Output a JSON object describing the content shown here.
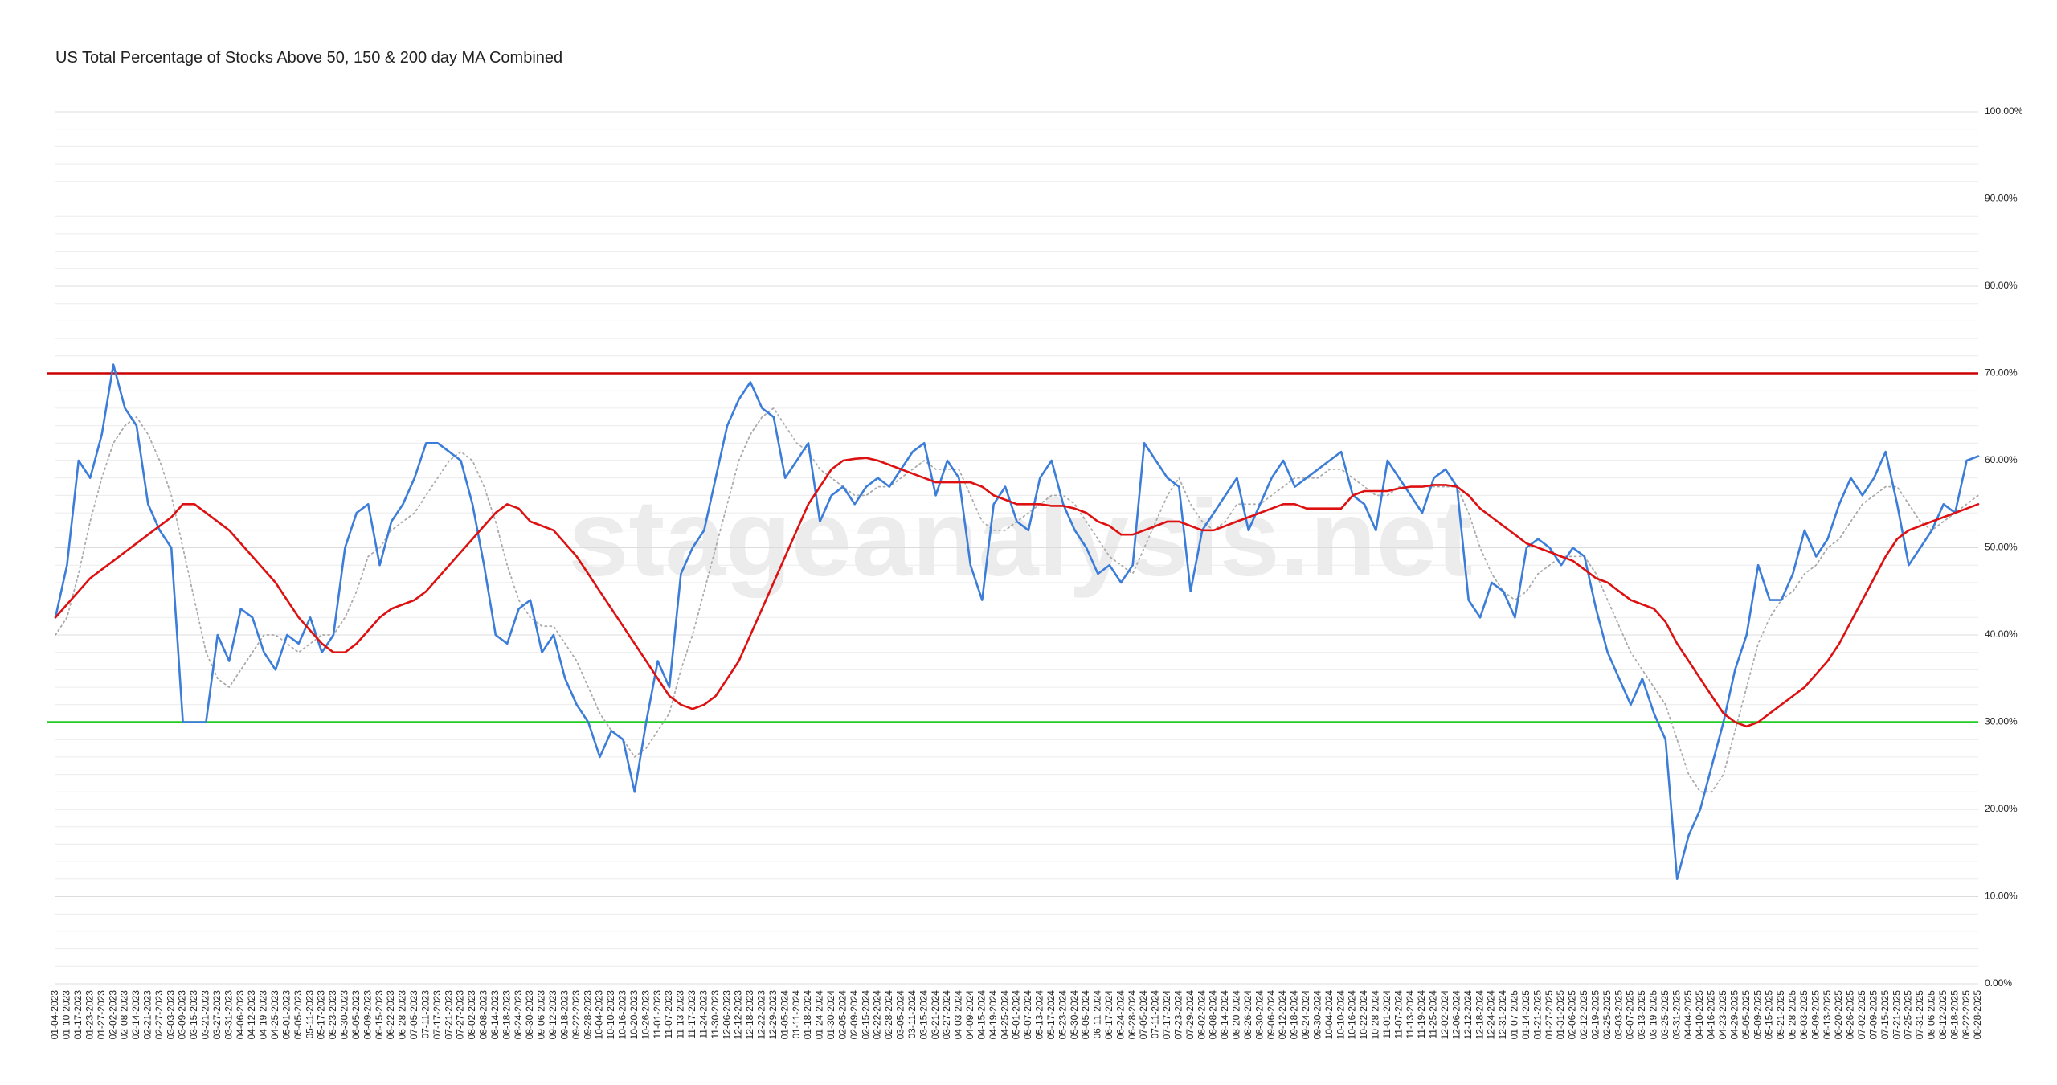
{
  "chart_data": {
    "type": "line",
    "title": "US Total Percentage of Stocks Above 50, 150 & 200 day MA Combined",
    "watermark": "stageanalysis.net",
    "categories": [
      "01-04-2023",
      "01-10-2023",
      "01-17-2023",
      "01-23-2023",
      "01-27-2023",
      "02-02-2023",
      "02-08-2023",
      "02-14-2023",
      "02-21-2023",
      "02-27-2023",
      "03-03-2023",
      "03-09-2023",
      "03-15-2023",
      "03-21-2023",
      "03-27-2023",
      "03-31-2023",
      "04-06-2023",
      "04-12-2023",
      "04-19-2023",
      "04-25-2023",
      "05-01-2023",
      "05-05-2023",
      "05-11-2023",
      "05-17-2023",
      "05-23-2023",
      "05-30-2023",
      "06-05-2023",
      "06-09-2023",
      "06-15-2023",
      "06-22-2023",
      "06-28-2023",
      "07-05-2023",
      "07-11-2023",
      "07-17-2023",
      "07-21-2023",
      "07-27-2023",
      "08-02-2023",
      "08-08-2023",
      "08-14-2023",
      "08-18-2023",
      "08-24-2023",
      "08-30-2023",
      "09-06-2023",
      "09-12-2023",
      "09-18-2023",
      "09-22-2023",
      "09-28-2023",
      "10-04-2023",
      "10-10-2023",
      "10-16-2023",
      "10-20-2023",
      "10-26-2023",
      "11-01-2023",
      "11-07-2023",
      "11-13-2023",
      "11-17-2023",
      "11-24-2023",
      "11-30-2023",
      "12-06-2023",
      "12-12-2023",
      "12-18-2023",
      "12-22-2023",
      "12-29-2023",
      "01-05-2024",
      "01-11-2024",
      "01-18-2024",
      "01-24-2024",
      "01-30-2024",
      "02-05-2024",
      "02-09-2024",
      "02-15-2024",
      "02-22-2024",
      "02-28-2024",
      "03-05-2024",
      "03-11-2024",
      "03-15-2024",
      "03-21-2024",
      "03-27-2024",
      "04-03-2024",
      "04-09-2024",
      "04-15-2024",
      "04-19-2024",
      "04-25-2024",
      "05-01-2024",
      "05-07-2024",
      "05-13-2024",
      "05-17-2024",
      "05-23-2024",
      "05-30-2024",
      "06-05-2024",
      "06-11-2024",
      "06-17-2024",
      "06-24-2024",
      "06-28-2024",
      "07-05-2024",
      "07-11-2024",
      "07-17-2024",
      "07-23-2024",
      "07-29-2024",
      "08-02-2024",
      "08-08-2024",
      "08-14-2024",
      "08-20-2024",
      "08-26-2024",
      "08-30-2024",
      "09-06-2024",
      "09-12-2024",
      "09-18-2024",
      "09-24-2024",
      "09-30-2024",
      "10-04-2024",
      "10-10-2024",
      "10-16-2024",
      "10-22-2024",
      "10-28-2024",
      "11-01-2024",
      "11-07-2024",
      "11-13-2024",
      "11-19-2024",
      "11-25-2024",
      "12-02-2024",
      "12-06-2024",
      "12-12-2024",
      "12-18-2024",
      "12-24-2024",
      "12-31-2024",
      "01-07-2025",
      "01-14-2025",
      "01-21-2025",
      "01-27-2025",
      "01-31-2025",
      "02-06-2025",
      "02-12-2025",
      "02-19-2025",
      "02-25-2025",
      "03-03-2025",
      "03-07-2025",
      "03-13-2025",
      "03-19-2025",
      "03-25-2025",
      "03-31-2025",
      "04-04-2025",
      "04-10-2025",
      "04-16-2025",
      "04-23-2025",
      "04-29-2025",
      "05-05-2025",
      "05-09-2025",
      "05-15-2025",
      "05-21-2025",
      "05-28-2025",
      "06-03-2025",
      "06-09-2025",
      "06-13-2025",
      "06-20-2025",
      "06-26-2025",
      "07-02-2025",
      "07-09-2025",
      "07-15-2025",
      "07-21-2025",
      "07-25-2025",
      "07-31-2025",
      "08-06-2025",
      "08-12-2025",
      "08-18-2025",
      "08-22-2025",
      "08-28-2025"
    ],
    "series": [
      {
        "color": "#3b7dd8",
        "style": "solid",
        "values": [
          42,
          48,
          60,
          58,
          63,
          71,
          66,
          64,
          55,
          52,
          50,
          30,
          30,
          30,
          40,
          37,
          43,
          42,
          38,
          36,
          40,
          39,
          42,
          38,
          40,
          50,
          54,
          55,
          48,
          53,
          55,
          58,
          62,
          62,
          61,
          60,
          55,
          48,
          40,
          39,
          43,
          44,
          38,
          40,
          35,
          32,
          30,
          26,
          29,
          28,
          22,
          30,
          37,
          34,
          47,
          50,
          52,
          58,
          64,
          67,
          69,
          66,
          65,
          58,
          60,
          62,
          53,
          56,
          57,
          55,
          57,
          58,
          57,
          59,
          61,
          62,
          56,
          60,
          58,
          48,
          44,
          55,
          57,
          53,
          52,
          58,
          60,
          55,
          52,
          50,
          47,
          48,
          46,
          48,
          62,
          60,
          58,
          57,
          45,
          52,
          54,
          56,
          58,
          52,
          55,
          58,
          60,
          57,
          58,
          59,
          60,
          61,
          56,
          55,
          52,
          60,
          58,
          56,
          54,
          58,
          59,
          57,
          44,
          42,
          46,
          45,
          42,
          50,
          51,
          50,
          48,
          50,
          49,
          43,
          38,
          35,
          32,
          35,
          31,
          28,
          12,
          17,
          20,
          25,
          30,
          36,
          40,
          48,
          44,
          44,
          47,
          52,
          49,
          51,
          55,
          58,
          56,
          58,
          61,
          55,
          48,
          50,
          52,
          55,
          54,
          60,
          60.5
        ]
      },
      {
        "color": "#aaaaaa",
        "style": "dotted",
        "values": [
          40,
          42,
          47,
          53,
          58,
          62,
          64,
          65,
          63,
          60,
          56,
          50,
          44,
          38,
          35,
          34,
          36,
          38,
          40,
          40,
          39,
          38,
          39,
          40,
          40,
          42,
          45,
          49,
          50,
          52,
          53,
          54,
          56,
          58,
          60,
          61,
          60,
          57,
          53,
          48,
          44,
          42,
          41,
          41,
          39,
          37,
          34,
          31,
          29,
          28,
          26,
          27,
          29,
          31,
          36,
          40,
          45,
          50,
          55,
          60,
          63,
          65,
          66,
          64,
          62,
          61,
          59,
          58,
          57,
          56,
          56,
          57,
          57,
          58,
          59,
          60,
          59,
          59,
          59,
          56,
          53,
          52,
          52,
          53,
          54,
          55,
          56,
          56,
          55,
          53,
          51,
          49,
          48,
          47,
          50,
          53,
          56,
          58,
          55,
          53,
          52,
          53,
          55,
          55,
          55,
          56,
          57,
          58,
          58,
          58,
          59,
          59,
          58,
          57,
          56,
          56,
          57,
          57,
          57,
          57,
          57,
          57,
          54,
          50,
          47,
          45,
          44,
          45,
          47,
          48,
          49,
          49,
          49,
          47,
          44,
          41,
          38,
          36,
          34,
          32,
          28,
          24,
          22,
          22,
          24,
          29,
          34,
          39,
          42,
          44,
          45,
          47,
          48,
          50,
          51,
          53,
          55,
          56,
          57,
          57,
          55,
          53,
          52,
          53,
          54,
          55,
          56
        ]
      },
      {
        "color": "#dd1111",
        "style": "solid",
        "values": [
          42,
          43.5,
          45,
          46.5,
          47.5,
          48.5,
          49.5,
          50.5,
          51.5,
          52.5,
          53.5,
          55,
          55,
          54,
          53,
          52,
          50.5,
          49,
          47.5,
          46,
          44,
          42,
          40.5,
          39,
          38,
          38,
          39,
          40.5,
          42,
          43,
          43.5,
          44,
          45,
          46.5,
          48,
          49.5,
          51,
          52.5,
          54,
          55,
          54.5,
          53,
          52.5,
          52,
          50.5,
          49,
          47,
          45,
          43,
          41,
          39,
          37,
          35,
          33,
          32,
          31.5,
          32,
          33,
          35,
          37,
          40,
          43,
          46,
          49,
          52,
          55,
          57,
          59,
          60,
          60.2,
          60.3,
          60,
          59.5,
          59,
          58.5,
          58,
          57.5,
          57.5,
          57.5,
          57.5,
          57,
          56,
          55.5,
          55,
          55,
          55,
          54.8,
          54.8,
          54.5,
          54,
          53,
          52.5,
          51.5,
          51.5,
          52,
          52.5,
          53,
          53,
          52.5,
          52,
          52,
          52.5,
          53,
          53.5,
          54,
          54.5,
          55,
          55,
          54.5,
          54.5,
          54.5,
          54.5,
          56,
          56.5,
          56.5,
          56.5,
          56.8,
          57,
          57,
          57.2,
          57.2,
          57,
          56,
          54.5,
          53.5,
          52.5,
          51.5,
          50.5,
          50,
          49.5,
          49,
          48.5,
          47.5,
          46.5,
          46,
          45,
          44,
          43.5,
          43,
          41.5,
          39,
          37,
          35,
          33,
          31,
          30,
          29.5,
          30,
          31,
          32,
          33,
          34,
          35.5,
          37,
          39,
          41.5,
          44,
          46.5,
          49,
          51,
          52,
          52.5,
          53,
          53.5,
          54,
          54.5,
          55
        ]
      }
    ],
    "reference_lines": [
      {
        "value": 70,
        "color": "#cc0000"
      },
      {
        "value": 30,
        "color": "#22cc22"
      }
    ],
    "ylim": [
      0,
      100
    ],
    "yticks": [
      {
        "value": 0,
        "label": "0.00%"
      },
      {
        "value": 10,
        "label": "10.00%"
      },
      {
        "value": 20,
        "label": "20.00%"
      },
      {
        "value": 30,
        "label": "30.00%"
      },
      {
        "value": 40,
        "label": "40.00%"
      },
      {
        "value": 50,
        "label": "50.00%"
      },
      {
        "value": 60,
        "label": "60.00%"
      },
      {
        "value": 70,
        "label": "70.00%"
      },
      {
        "value": 80,
        "label": "80.00%"
      },
      {
        "value": 90,
        "label": "90.00%"
      },
      {
        "value": 100,
        "label": "100.00%"
      }
    ],
    "minor_yticks": [
      2,
      4,
      6,
      8,
      12,
      14,
      16,
      18,
      22,
      24,
      26,
      28,
      32,
      34,
      36,
      38,
      42,
      44,
      46,
      48,
      52,
      54,
      56,
      58,
      62,
      64,
      66,
      68,
      72,
      74,
      76,
      78,
      82,
      84,
      86,
      88,
      92,
      94,
      96,
      98
    ],
    "grid": true
  }
}
